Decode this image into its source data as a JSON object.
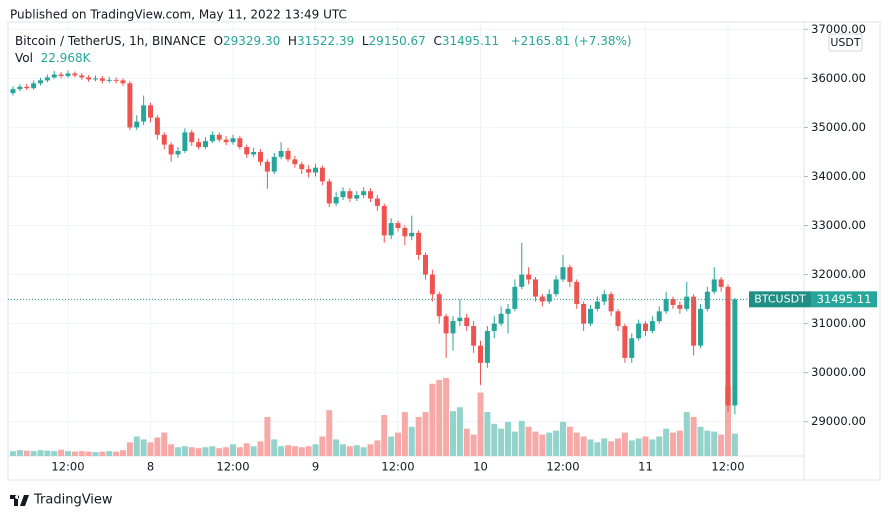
{
  "chart_data": {
    "type": "candlestick",
    "published": "Published on TradingView.com, May 11, 2022 13:49 UTC",
    "title": "Bitcoin / TetherUS, 1h, BINANCE",
    "ohlc_legend": [
      {
        "key": "O",
        "value": "29329.30"
      },
      {
        "key": "H",
        "value": "31522.39"
      },
      {
        "key": "L",
        "value": "29150.67"
      },
      {
        "key": "C",
        "value": "31495.11"
      }
    ],
    "change": "+2165.81 (+7.38%)",
    "volume_legend": {
      "name": "Vol",
      "value_label": "22.968K"
    },
    "currency": "USDT",
    "ticker": "BTCUSDT",
    "brand": "TradingView",
    "up_color": "#26a69a",
    "down_color": "#ef5350",
    "up_volume_color": "#94d3cc",
    "down_volume_color": "#f7a9a7",
    "grid": true,
    "ylim": [
      28300,
      37150
    ],
    "yticks": [
      {
        "value": 29000,
        "label": "29000.00"
      },
      {
        "value": 30000,
        "label": "30000.00"
      },
      {
        "value": 31000,
        "label": "31000.00"
      },
      {
        "value": 32000,
        "label": "32000.00"
      },
      {
        "value": 33000,
        "label": "33000.00"
      },
      {
        "value": 34000,
        "label": "34000.00"
      },
      {
        "value": 35000,
        "label": "35000.00"
      },
      {
        "value": 36000,
        "label": "36000.00"
      },
      {
        "value": 37000,
        "label": "37000.00"
      }
    ],
    "volume_ylim": [
      0,
      82000
    ],
    "categories": [
      null,
      null,
      null,
      null,
      null,
      null,
      null,
      null,
      "12:00",
      null,
      null,
      null,
      null,
      null,
      null,
      null,
      null,
      null,
      null,
      null,
      "8",
      null,
      null,
      null,
      null,
      null,
      null,
      null,
      null,
      null,
      null,
      null,
      "12:00",
      null,
      null,
      null,
      null,
      null,
      null,
      null,
      null,
      null,
      null,
      null,
      "9",
      null,
      null,
      null,
      null,
      null,
      null,
      null,
      null,
      null,
      null,
      null,
      "12:00",
      null,
      null,
      null,
      null,
      null,
      null,
      null,
      null,
      null,
      null,
      null,
      "10",
      null,
      null,
      null,
      null,
      null,
      null,
      null,
      null,
      null,
      null,
      null,
      "12:00",
      null,
      null,
      null,
      null,
      null,
      null,
      null,
      null,
      null,
      null,
      null,
      "11",
      null,
      null,
      null,
      null,
      null,
      null,
      null,
      null,
      null,
      null,
      null,
      "12:00",
      null
    ],
    "open": [
      35700,
      35780,
      35830,
      35800,
      35900,
      35960,
      36020,
      36080,
      36050,
      36100,
      36060,
      36020,
      35980,
      36000,
      35950,
      35970,
      35960,
      35900,
      35000,
      35120,
      35450,
      35200,
      34850,
      34650,
      34450,
      34520,
      34900,
      34700,
      34600,
      34720,
      34850,
      34750,
      34700,
      34780,
      34600,
      34450,
      34500,
      34300,
      34100,
      34400,
      34520,
      34350,
      34250,
      34150,
      34080,
      34180,
      33900,
      33450,
      33580,
      33700,
      33550,
      33620,
      33700,
      33550,
      33400,
      32800,
      33050,
      32950,
      32780,
      32850,
      32400,
      32000,
      31600,
      31150,
      30800,
      31050,
      31120,
      30950,
      30550,
      30200,
      30850,
      31000,
      31200,
      31300,
      31750,
      32000,
      31900,
      31550,
      31450,
      31600,
      31900,
      32150,
      31850,
      31400,
      31000,
      31300,
      31450,
      31600,
      31250,
      30950,
      30300,
      30700,
      31000,
      30850,
      31050,
      31250,
      31500,
      31380,
      31300,
      31550,
      30550,
      31300,
      31650,
      31900,
      31750,
      29329.3
    ],
    "high": [
      35840,
      35880,
      35890,
      35960,
      36010,
      36080,
      36150,
      36130,
      36160,
      36140,
      36110,
      36070,
      36060,
      36050,
      36030,
      36020,
      36000,
      35950,
      35250,
      35650,
      35500,
      35250,
      34900,
      34700,
      34600,
      34980,
      34950,
      34780,
      34800,
      34920,
      34900,
      34820,
      34850,
      34830,
      34650,
      34580,
      34560,
      34350,
      34480,
      34700,
      34580,
      34420,
      34300,
      34230,
      34260,
      34220,
      33950,
      33680,
      33780,
      33760,
      33700,
      33780,
      33760,
      33620,
      33450,
      33150,
      33100,
      33000,
      33200,
      32900,
      32450,
      32100,
      31650,
      31200,
      31150,
      31500,
      31200,
      31050,
      30650,
      30950,
      31150,
      31350,
      31400,
      31900,
      32650,
      32150,
      31950,
      31600,
      31700,
      31980,
      32400,
      32200,
      31900,
      31450,
      31380,
      31550,
      31680,
      31650,
      31300,
      31000,
      30800,
      31080,
      31050,
      31150,
      31350,
      31650,
      31550,
      31450,
      31850,
      31600,
      31400,
      31750,
      32150,
      31950,
      31800,
      31522.39
    ],
    "low": [
      35650,
      35740,
      35760,
      35770,
      35860,
      35920,
      35990,
      36000,
      36010,
      36020,
      35970,
      35930,
      35940,
      35900,
      35910,
      35900,
      35850,
      34950,
      34950,
      35050,
      35100,
      34750,
      34550,
      34300,
      34380,
      34480,
      34620,
      34550,
      34560,
      34680,
      34700,
      34640,
      34650,
      34550,
      34380,
      34400,
      34220,
      33750,
      34050,
      34350,
      34300,
      34180,
      34050,
      33980,
      34000,
      33820,
      33380,
      33400,
      33520,
      33480,
      33500,
      33560,
      33480,
      33300,
      32650,
      32720,
      32880,
      32600,
      32700,
      32300,
      31900,
      31450,
      31000,
      30300,
      30450,
      30950,
      30850,
      30400,
      29750,
      30100,
      30700,
      30950,
      30800,
      31250,
      31700,
      31800,
      31450,
      31350,
      31400,
      31550,
      31850,
      31750,
      31300,
      30850,
      30950,
      31250,
      31380,
      31150,
      30850,
      30200,
      30200,
      30650,
      30750,
      30800,
      31000,
      31200,
      31300,
      31200,
      31250,
      30350,
      30500,
      31250,
      31600,
      31650,
      29200,
      29150.67
    ],
    "close": [
      35780,
      35830,
      35800,
      35900,
      35960,
      36020,
      36080,
      36050,
      36100,
      36060,
      36020,
      35980,
      36000,
      35950,
      35970,
      35960,
      35900,
      35000,
      35120,
      35450,
      35200,
      34850,
      34650,
      34450,
      34520,
      34900,
      34700,
      34600,
      34720,
      34850,
      34750,
      34700,
      34780,
      34600,
      34450,
      34500,
      34300,
      34100,
      34400,
      34520,
      34350,
      34250,
      34150,
      34080,
      34180,
      33900,
      33450,
      33580,
      33700,
      33550,
      33620,
      33700,
      33550,
      33400,
      32800,
      33050,
      32950,
      32780,
      32850,
      32400,
      32000,
      31600,
      31150,
      30800,
      31050,
      31120,
      30950,
      30550,
      30200,
      30850,
      31000,
      31200,
      31300,
      31750,
      32000,
      31900,
      31550,
      31450,
      31600,
      31900,
      32150,
      31850,
      31400,
      31000,
      31300,
      31450,
      31600,
      31250,
      30950,
      30300,
      30700,
      31000,
      30850,
      31050,
      31250,
      31500,
      31380,
      31300,
      31550,
      30550,
      31300,
      31650,
      31900,
      31750,
      29329.3,
      31495.11
    ],
    "volume": [
      5000,
      6000,
      5500,
      5000,
      6000,
      5500,
      5000,
      6500,
      5000,
      4500,
      5000,
      4500,
      4000,
      4500,
      5000,
      4500,
      6000,
      14000,
      20000,
      17000,
      14000,
      19000,
      24000,
      12000,
      9000,
      10000,
      9000,
      8000,
      9000,
      10000,
      8000,
      9000,
      12000,
      9000,
      13000,
      10000,
      15000,
      40000,
      17000,
      10000,
      11000,
      10000,
      9000,
      10000,
      12000,
      20000,
      47000,
      17000,
      12000,
      10000,
      11000,
      9000,
      12000,
      16000,
      42000,
      20000,
      24000,
      45000,
      30000,
      40000,
      45000,
      74000,
      78000,
      80000,
      46000,
      50000,
      28000,
      22000,
      65000,
      45000,
      33000,
      28000,
      35000,
      25000,
      36000,
      30000,
      25000,
      22000,
      24000,
      26000,
      35000,
      30000,
      24000,
      20000,
      17000,
      14000,
      18000,
      15000,
      18000,
      24000,
      16000,
      18000,
      20000,
      17000,
      20000,
      28000,
      24000,
      26000,
      45000,
      40000,
      30000,
      26000,
      25000,
      22000,
      72000,
      22968
    ]
  }
}
